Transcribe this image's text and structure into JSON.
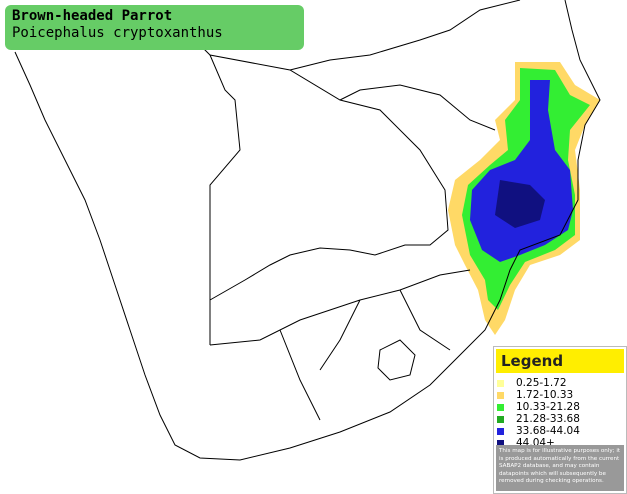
{
  "header": {
    "title": "Brown-headed Parrot",
    "subtitle": "Poicephalus cryptoxanthus"
  },
  "legend": {
    "title": "Legend",
    "entries": [
      {
        "label": "0.25-1.72",
        "color": "#ffff99"
      },
      {
        "label": "1.72-10.33",
        "color": "#ffd966"
      },
      {
        "label": "10.33-21.28",
        "color": "#33ee33"
      },
      {
        "label": "21.28-33.68",
        "color": "#22aa22"
      },
      {
        "label": "33.68-44.04",
        "color": "#2222dd"
      },
      {
        "label": "44.04+",
        "color": "#101080"
      }
    ],
    "note": "This map is for illustrative purposes only; it is produced automatically from the current SABAP2 database, and may contain datapoints which will subsequently be removed during checking operations."
  }
}
